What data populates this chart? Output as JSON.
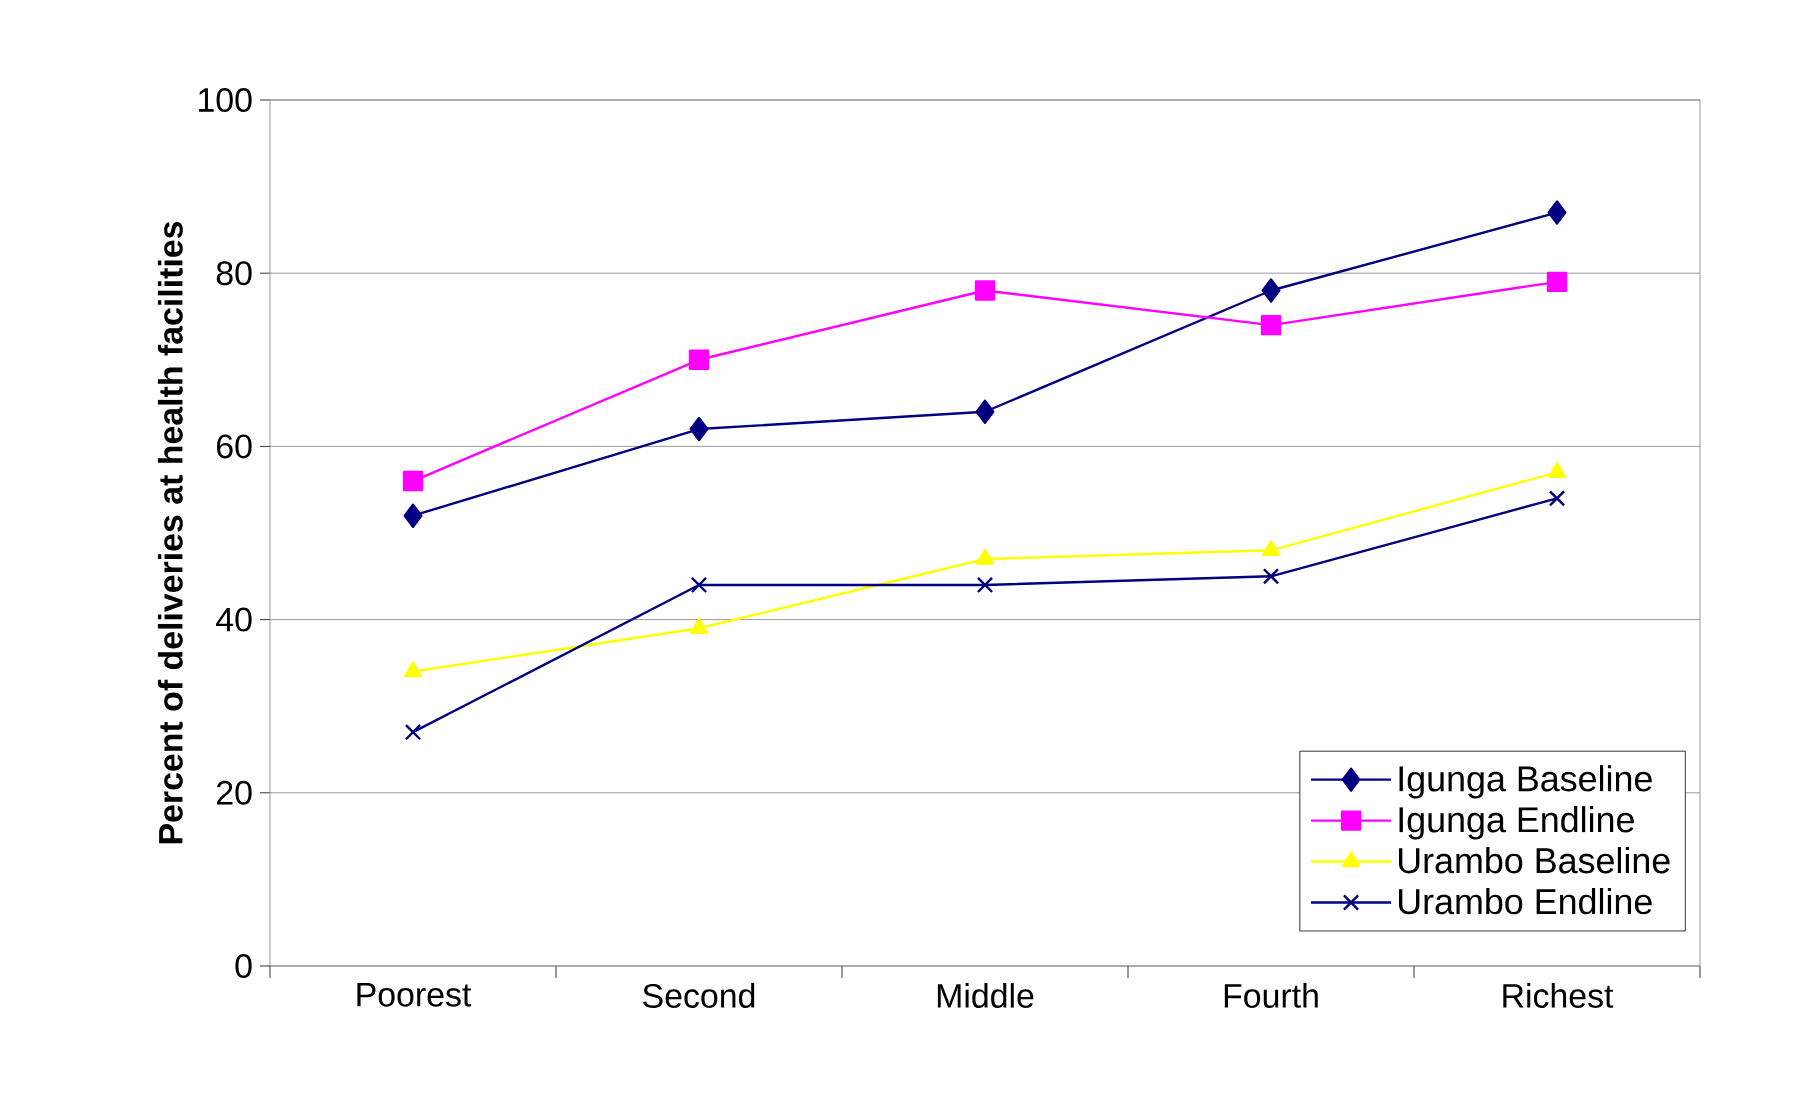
{
  "chart_data": {
    "type": "line",
    "ylabel": "Percent of deliveries at health facilities",
    "categories": [
      "Poorest",
      "Second",
      "Middle",
      "Fourth",
      "Richest"
    ],
    "ylim": [
      0,
      100
    ],
    "yticks": [
      0,
      20,
      40,
      60,
      80,
      100
    ],
    "grid": "y",
    "legend": "bottom right",
    "series": [
      {
        "name": "Igunga Baseline",
        "color": "#000080",
        "marker": "diamond",
        "values": [
          52,
          62,
          64,
          78,
          87
        ]
      },
      {
        "name": "Igunga Endline",
        "color": "#ff00ff",
        "marker": "square",
        "values": [
          56,
          70,
          78,
          74,
          79
        ]
      },
      {
        "name": "Urambo Baseline",
        "color": "#ffff00",
        "marker": "triangle",
        "values": [
          34,
          39,
          47,
          48,
          57
        ]
      },
      {
        "name": "Urambo Endline",
        "color": "#000080",
        "marker": "cross",
        "values": [
          27,
          44,
          44,
          45,
          54
        ]
      }
    ]
  }
}
